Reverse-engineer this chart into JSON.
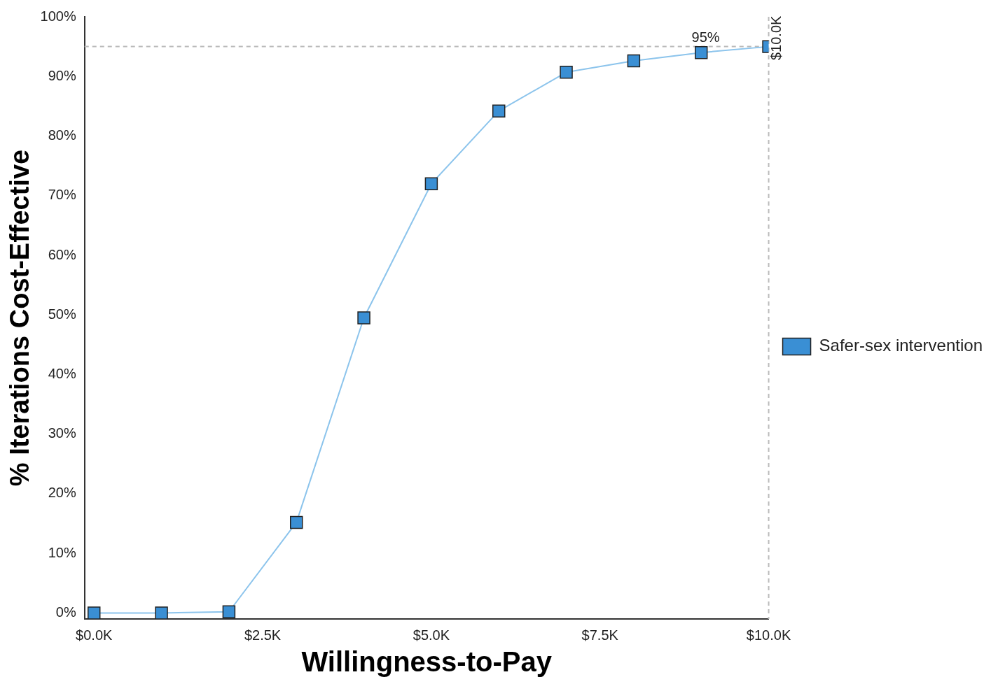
{
  "chart_data": {
    "type": "line",
    "xlabel": "Willingness-to-Pay",
    "ylabel": "% Iterations Cost-Effective",
    "x": [
      0,
      1000,
      2000,
      3000,
      4000,
      5000,
      6000,
      7000,
      8000,
      9000,
      10000
    ],
    "series": [
      {
        "name": "Safer-sex intervention",
        "color": "#3a8fd4",
        "values": [
          0,
          0,
          0.2,
          15.2,
          49.5,
          72,
          84.2,
          90.7,
          92.6,
          94,
          95
        ]
      }
    ],
    "xlim": [
      -140,
      10000
    ],
    "ylim": [
      -1,
      100
    ],
    "xticks": [
      {
        "value": 0,
        "label": "$0.0K"
      },
      {
        "value": 2500,
        "label": "$2.5K"
      },
      {
        "value": 5000,
        "label": "$5.0K"
      },
      {
        "value": 7500,
        "label": "$7.5K"
      },
      {
        "value": 10000,
        "label": "$10.0K"
      }
    ],
    "yticks": [
      {
        "value": 0,
        "label": "0%"
      },
      {
        "value": 10,
        "label": "10%"
      },
      {
        "value": 20,
        "label": "20%"
      },
      {
        "value": 30,
        "label": "30%"
      },
      {
        "value": 40,
        "label": "40%"
      },
      {
        "value": 50,
        "label": "50%"
      },
      {
        "value": 60,
        "label": "60%"
      },
      {
        "value": 70,
        "label": "70%"
      },
      {
        "value": 80,
        "label": "80%"
      },
      {
        "value": 90,
        "label": "90%"
      },
      {
        "value": 100,
        "label": "100%"
      }
    ],
    "ref_lines": [
      {
        "axis": "y",
        "value": 95,
        "label": "95%",
        "color": "#bbbbbb",
        "line_style": "dashed"
      },
      {
        "axis": "x",
        "value": 10000,
        "label": "$10.0K",
        "color": "#bbbbbb",
        "line_style": "dashed"
      }
    ],
    "marker": "square",
    "line_style": "solid",
    "grid": false,
    "legend": "right"
  }
}
